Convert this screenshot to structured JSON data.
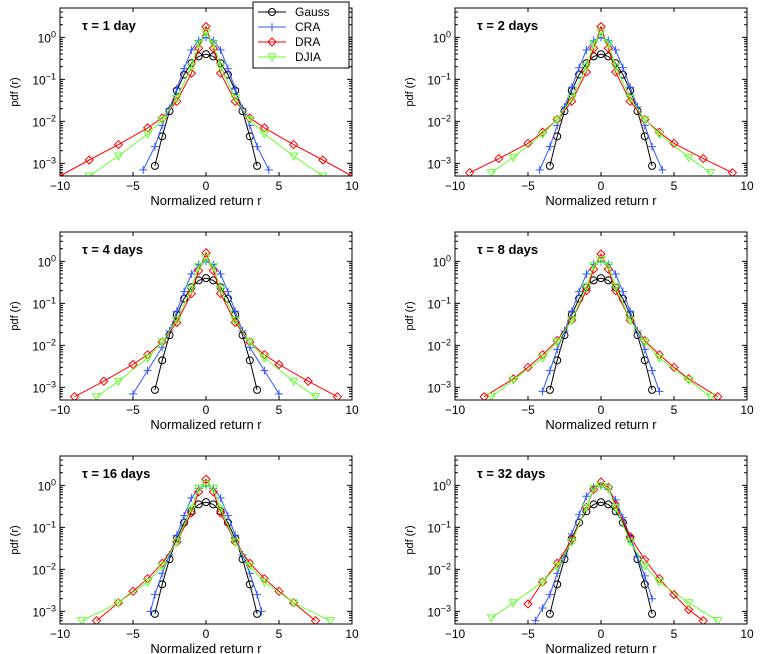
{
  "legend": {
    "entries": [
      {
        "name": "Gauss",
        "color": "#000000",
        "marker": "circle"
      },
      {
        "name": "CRA",
        "color": "#3355ff",
        "marker": "plus"
      },
      {
        "name": "DRA",
        "color": "#ff0000",
        "marker": "diamond"
      },
      {
        "name": "DJIA",
        "color": "#66ff33",
        "marker": "triangle-down"
      }
    ]
  },
  "chart_data": [
    {
      "type": "line",
      "annotation": "τ = 1 day",
      "xlabel": "Normalized return r",
      "ylabel": "pdf (r)",
      "xlim": [
        -10,
        10
      ],
      "ylim": [
        0.0005,
        5
      ],
      "yscale": "log",
      "xticks": [
        "−10",
        "−5",
        "0",
        "5",
        "10"
      ],
      "yticks": [
        "10^{-3}",
        "10^{-2}",
        "10^{-1}",
        "10^{0}"
      ],
      "series": [
        {
          "name": "Gauss",
          "x": [
            -3.5,
            -3,
            -2.5,
            -2,
            -1.5,
            -1,
            -0.5,
            0,
            0.5,
            1,
            1.5,
            2,
            2.5,
            3,
            3.5
          ],
          "y": [
            0.00087,
            0.0044,
            0.0175,
            0.054,
            0.13,
            0.242,
            0.352,
            0.399,
            0.352,
            0.242,
            0.13,
            0.054,
            0.0175,
            0.0044,
            0.00087
          ]
        },
        {
          "name": "CRA",
          "x": [
            -4.3,
            -3.5,
            -3,
            -2.5,
            -2,
            -1.5,
            -1,
            -0.5,
            0,
            0.5,
            1,
            1.5,
            2,
            2.5,
            3,
            3.5,
            4.3
          ],
          "y": [
            0.0007,
            0.0025,
            0.008,
            0.02,
            0.06,
            0.18,
            0.5,
            0.85,
            1.0,
            0.85,
            0.5,
            0.18,
            0.06,
            0.02,
            0.008,
            0.0025,
            0.0007
          ]
        },
        {
          "name": "DRA",
          "x": [
            -10,
            -8,
            -6,
            -4,
            -3,
            -2,
            -1,
            -0.5,
            0,
            0.5,
            1,
            2,
            3,
            4,
            6,
            8,
            10
          ],
          "y": [
            0.0005,
            0.0012,
            0.0028,
            0.007,
            0.012,
            0.03,
            0.14,
            0.55,
            1.8,
            0.55,
            0.14,
            0.03,
            0.012,
            0.007,
            0.0028,
            0.0012,
            0.0005
          ]
        },
        {
          "name": "DJIA",
          "x": [
            -8,
            -6,
            -4,
            -3,
            -2,
            -1,
            -0.5,
            0,
            0.5,
            1,
            2,
            3,
            4,
            6,
            8
          ],
          "y": [
            0.0005,
            0.0015,
            0.005,
            0.011,
            0.035,
            0.2,
            0.7,
            1.3,
            0.7,
            0.2,
            0.035,
            0.011,
            0.005,
            0.0015,
            0.0005
          ]
        }
      ]
    },
    {
      "type": "line",
      "annotation": "τ = 2 days",
      "xlabel": "Normalized return r",
      "ylabel": "pdf (r)",
      "xlim": [
        -10,
        10
      ],
      "ylim": [
        0.0005,
        5
      ],
      "yscale": "log",
      "xticks": [
        "−10",
        "−5",
        "0",
        "5",
        "10"
      ],
      "yticks": [
        "10^{-3}",
        "10^{-2}",
        "10^{-1}",
        "10^{0}"
      ],
      "series": [
        {
          "name": "Gauss",
          "x": [
            -3.5,
            -3,
            -2.5,
            -2,
            -1.5,
            -1,
            -0.5,
            0,
            0.5,
            1,
            1.5,
            2,
            2.5,
            3,
            3.5
          ],
          "y": [
            0.00087,
            0.0044,
            0.0175,
            0.054,
            0.13,
            0.242,
            0.352,
            0.399,
            0.352,
            0.242,
            0.13,
            0.054,
            0.0175,
            0.0044,
            0.00087
          ]
        },
        {
          "name": "CRA",
          "x": [
            -4.2,
            -3.5,
            -3,
            -2.5,
            -2,
            -1.5,
            -1,
            -0.5,
            0,
            0.5,
            1,
            1.5,
            2,
            2.5,
            3,
            3.5,
            4.2
          ],
          "y": [
            0.0007,
            0.0025,
            0.008,
            0.022,
            0.065,
            0.19,
            0.5,
            0.85,
            1.0,
            0.85,
            0.5,
            0.19,
            0.065,
            0.022,
            0.008,
            0.0025,
            0.0007
          ]
        },
        {
          "name": "DRA",
          "x": [
            -9,
            -7,
            -5,
            -4,
            -3,
            -2,
            -1,
            -0.5,
            0,
            0.5,
            1,
            2,
            3,
            4,
            5,
            7,
            9
          ],
          "y": [
            0.0006,
            0.0013,
            0.003,
            0.0055,
            0.011,
            0.03,
            0.15,
            0.55,
            1.8,
            0.55,
            0.15,
            0.03,
            0.011,
            0.0055,
            0.003,
            0.0013,
            0.0006
          ]
        },
        {
          "name": "DJIA",
          "x": [
            -7.5,
            -6,
            -4,
            -3,
            -2,
            -1,
            -0.5,
            0,
            0.5,
            1,
            2,
            3,
            4,
            6,
            7.5
          ],
          "y": [
            0.0006,
            0.0014,
            0.005,
            0.011,
            0.035,
            0.2,
            0.7,
            1.3,
            0.7,
            0.2,
            0.035,
            0.011,
            0.005,
            0.0014,
            0.0006
          ]
        }
      ]
    },
    {
      "type": "line",
      "annotation": "τ = 4 days",
      "xlabel": "Normalized return r",
      "ylabel": "pdf (r)",
      "xlim": [
        -10,
        10
      ],
      "ylim": [
        0.0005,
        5
      ],
      "yscale": "log",
      "xticks": [
        "−10",
        "−5",
        "0",
        "5",
        "10"
      ],
      "yticks": [
        "10^{-3}",
        "10^{-2}",
        "10^{-1}",
        "10^{0}"
      ],
      "series": [
        {
          "name": "Gauss",
          "x": [
            -3.5,
            -3,
            -2.5,
            -2,
            -1.5,
            -1,
            -0.5,
            0,
            0.5,
            1,
            1.5,
            2,
            2.5,
            3,
            3.5
          ],
          "y": [
            0.00087,
            0.0044,
            0.0175,
            0.054,
            0.13,
            0.242,
            0.352,
            0.399,
            0.352,
            0.242,
            0.13,
            0.054,
            0.0175,
            0.0044,
            0.00087
          ]
        },
        {
          "name": "CRA",
          "x": [
            -5,
            -4,
            -3,
            -2.5,
            -2,
            -1.5,
            -1,
            -0.5,
            0,
            0.5,
            1,
            1.5,
            2,
            2.5,
            3,
            4,
            5
          ],
          "y": [
            0.0007,
            0.0025,
            0.009,
            0.022,
            0.065,
            0.19,
            0.5,
            0.85,
            1.0,
            0.85,
            0.5,
            0.19,
            0.065,
            0.022,
            0.009,
            0.0025,
            0.0007
          ]
        },
        {
          "name": "DRA",
          "x": [
            -9,
            -7,
            -5,
            -4,
            -3,
            -2,
            -1,
            -0.5,
            0,
            0.5,
            1,
            2,
            3,
            4,
            5,
            7,
            9
          ],
          "y": [
            0.0006,
            0.0014,
            0.0035,
            0.006,
            0.012,
            0.035,
            0.17,
            0.6,
            1.6,
            0.6,
            0.17,
            0.035,
            0.012,
            0.006,
            0.0035,
            0.0014,
            0.0006
          ]
        },
        {
          "name": "DJIA",
          "x": [
            -7.5,
            -6,
            -4,
            -3,
            -2,
            -1,
            -0.5,
            0,
            0.5,
            1,
            2,
            3,
            4,
            6,
            7.5
          ],
          "y": [
            0.0006,
            0.0014,
            0.005,
            0.012,
            0.04,
            0.22,
            0.75,
            1.2,
            0.75,
            0.22,
            0.04,
            0.012,
            0.005,
            0.0014,
            0.0006
          ]
        }
      ]
    },
    {
      "type": "line",
      "annotation": "τ = 8 days",
      "xlabel": "Normalized return r",
      "ylabel": "pdf (r)",
      "xlim": [
        -10,
        10
      ],
      "ylim": [
        0.0005,
        5
      ],
      "yscale": "log",
      "xticks": [
        "−10",
        "−5",
        "0",
        "5",
        "10"
      ],
      "yticks": [
        "10^{-3}",
        "10^{-2}",
        "10^{-1}",
        "10^{0}"
      ],
      "series": [
        {
          "name": "Gauss",
          "x": [
            -3.5,
            -3,
            -2.5,
            -2,
            -1.5,
            -1,
            -0.5,
            0,
            0.5,
            1,
            1.5,
            2,
            2.5,
            3,
            3.5
          ],
          "y": [
            0.00087,
            0.0044,
            0.0175,
            0.054,
            0.13,
            0.242,
            0.352,
            0.399,
            0.352,
            0.242,
            0.13,
            0.054,
            0.0175,
            0.0044,
            0.00087
          ]
        },
        {
          "name": "CRA",
          "x": [
            -4,
            -3.5,
            -3,
            -2.5,
            -2,
            -1.5,
            -1,
            -0.5,
            0,
            0.5,
            1,
            1.5,
            2,
            2.5,
            3,
            3.5,
            4
          ],
          "y": [
            0.0008,
            0.0025,
            0.008,
            0.022,
            0.065,
            0.19,
            0.5,
            0.85,
            1.0,
            0.85,
            0.5,
            0.19,
            0.065,
            0.022,
            0.008,
            0.0025,
            0.0008
          ]
        },
        {
          "name": "DRA",
          "x": [
            -8,
            -6,
            -5,
            -4,
            -3,
            -2,
            -1,
            -0.5,
            0,
            0.5,
            1,
            2,
            3,
            4,
            5,
            6,
            8
          ],
          "y": [
            0.0006,
            0.0016,
            0.003,
            0.006,
            0.013,
            0.04,
            0.2,
            0.65,
            1.5,
            0.65,
            0.2,
            0.04,
            0.013,
            0.006,
            0.003,
            0.0016,
            0.0006
          ]
        },
        {
          "name": "DJIA",
          "x": [
            -7.5,
            -6,
            -4,
            -3,
            -2,
            -1,
            -0.5,
            0,
            0.5,
            1,
            2,
            3,
            4,
            6,
            7.5
          ],
          "y": [
            0.0006,
            0.0015,
            0.005,
            0.012,
            0.04,
            0.25,
            0.8,
            1.1,
            0.8,
            0.25,
            0.04,
            0.012,
            0.005,
            0.0015,
            0.0006
          ]
        }
      ]
    },
    {
      "type": "line",
      "annotation": "τ = 16 days",
      "xlabel": "Normalized return r",
      "ylabel": "pdf (r)",
      "xlim": [
        -10,
        10
      ],
      "ylim": [
        0.0005,
        5
      ],
      "yscale": "log",
      "xticks": [
        "−10",
        "−5",
        "0",
        "5",
        "10"
      ],
      "yticks": [
        "10^{-3}",
        "10^{-2}",
        "10^{-1}",
        "10^{0}"
      ],
      "series": [
        {
          "name": "Gauss",
          "x": [
            -3.5,
            -3,
            -2.5,
            -2,
            -1.5,
            -1,
            -0.5,
            0,
            0.5,
            1,
            1.5,
            2,
            2.5,
            3,
            3.5
          ],
          "y": [
            0.00087,
            0.0044,
            0.0175,
            0.054,
            0.13,
            0.242,
            0.352,
            0.399,
            0.352,
            0.242,
            0.13,
            0.054,
            0.0175,
            0.0044,
            0.00087
          ]
        },
        {
          "name": "CRA",
          "x": [
            -3.8,
            -3.5,
            -3,
            -2.5,
            -2,
            -1.5,
            -1,
            -0.5,
            0,
            0.5,
            1,
            1.5,
            2,
            2.5,
            3,
            3.5,
            3.8
          ],
          "y": [
            0.001,
            0.0025,
            0.008,
            0.022,
            0.065,
            0.19,
            0.5,
            0.85,
            1.0,
            0.85,
            0.5,
            0.19,
            0.065,
            0.022,
            0.008,
            0.0025,
            0.001
          ]
        },
        {
          "name": "DRA",
          "x": [
            -7.5,
            -6,
            -5,
            -4,
            -3,
            -2,
            -1,
            -0.5,
            0,
            0.5,
            1,
            2,
            3,
            4,
            5,
            6,
            7.5
          ],
          "y": [
            0.0006,
            0.0016,
            0.003,
            0.006,
            0.014,
            0.045,
            0.22,
            0.7,
            1.4,
            0.7,
            0.22,
            0.045,
            0.014,
            0.006,
            0.003,
            0.0016,
            0.0006
          ]
        },
        {
          "name": "DJIA",
          "x": [
            -8.5,
            -6,
            -4,
            -3,
            -2,
            -1,
            -0.5,
            0,
            0.5,
            1,
            2,
            3,
            4,
            6,
            8.5
          ],
          "y": [
            0.0006,
            0.0016,
            0.005,
            0.012,
            0.045,
            0.28,
            0.85,
            1.05,
            0.85,
            0.28,
            0.045,
            0.012,
            0.005,
            0.0016,
            0.0006
          ]
        }
      ]
    },
    {
      "type": "line",
      "annotation": "τ = 32 days",
      "xlabel": "Normalized return r",
      "ylabel": "pdf (r)",
      "xlim": [
        -10,
        10
      ],
      "ylim": [
        0.0005,
        5
      ],
      "yscale": "log",
      "xticks": [
        "−10",
        "−5",
        "0",
        "5",
        "10"
      ],
      "yticks": [
        "10^{-3}",
        "10^{-2}",
        "10^{-1}",
        "10^{0}"
      ],
      "series": [
        {
          "name": "Gauss",
          "x": [
            -3.5,
            -3,
            -2.5,
            -2,
            -1.5,
            -1,
            -0.5,
            0,
            0.5,
            1,
            1.5,
            2,
            2.5,
            3,
            3.5
          ],
          "y": [
            0.00087,
            0.0044,
            0.0175,
            0.054,
            0.13,
            0.242,
            0.352,
            0.399,
            0.352,
            0.242,
            0.13,
            0.054,
            0.0175,
            0.0044,
            0.00087
          ]
        },
        {
          "name": "CRA",
          "x": [
            -4.5,
            -4,
            -3.5,
            -3,
            -2.5,
            -2,
            -1.5,
            -1,
            -0.5,
            0,
            0.5,
            1,
            1.5,
            2,
            2.5,
            3,
            3.5
          ],
          "y": [
            0.0006,
            0.0012,
            0.0025,
            0.008,
            0.022,
            0.07,
            0.2,
            0.55,
            0.9,
            1.0,
            0.8,
            0.45,
            0.17,
            0.06,
            0.02,
            0.007,
            0.002
          ]
        },
        {
          "name": "DRA",
          "x": [
            -5,
            -4,
            -3,
            -2,
            -1,
            -0.5,
            0,
            0.5,
            1,
            2,
            3,
            4,
            5,
            6,
            7
          ],
          "y": [
            0.0015,
            0.005,
            0.014,
            0.05,
            0.3,
            0.8,
            1.2,
            0.9,
            0.35,
            0.06,
            0.017,
            0.006,
            0.0025,
            0.0011,
            0.0006
          ]
        },
        {
          "name": "DJIA",
          "x": [
            -7.5,
            -6,
            -4,
            -3,
            -2,
            -1,
            -0.5,
            0,
            0.5,
            1,
            2,
            3,
            4,
            6,
            8
          ],
          "y": [
            0.0007,
            0.0016,
            0.005,
            0.012,
            0.045,
            0.3,
            0.85,
            1.0,
            0.85,
            0.3,
            0.045,
            0.012,
            0.005,
            0.0016,
            0.0006
          ]
        }
      ]
    }
  ]
}
